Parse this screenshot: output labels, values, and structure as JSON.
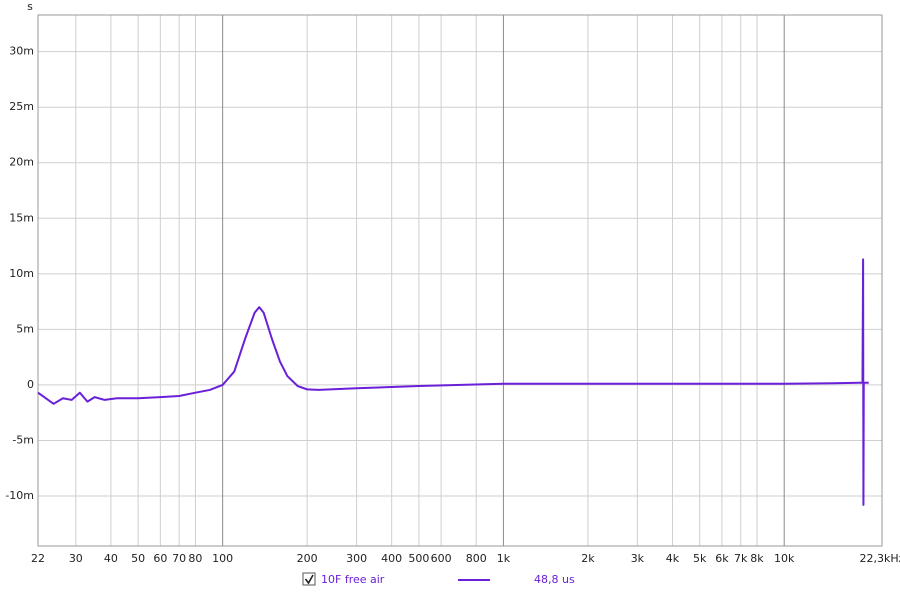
{
  "chart_data": {
    "type": "line",
    "ylabel": "s",
    "xscale": "log",
    "grid": true,
    "xlim": [
      22,
      22300
    ],
    "ylim": [
      -0.0145,
      0.0333
    ],
    "xticks": [
      22,
      30,
      40,
      50,
      60,
      70,
      80,
      100,
      200,
      300,
      400,
      500,
      600,
      800,
      {
        "value": 1000,
        "label": "1k"
      },
      {
        "value": 2000,
        "label": "2k"
      },
      {
        "value": 3000,
        "label": "3k"
      },
      {
        "value": 4000,
        "label": "4k"
      },
      {
        "value": 5000,
        "label": "5k"
      },
      {
        "value": 6000,
        "label": "6k"
      },
      {
        "value": 7000,
        "label": "7k"
      },
      {
        "value": 8000,
        "label": "8k"
      },
      {
        "value": 10000,
        "label": "10k"
      },
      {
        "value": 22300,
        "label": "22,3kHz"
      }
    ],
    "yticks": [
      {
        "value": -0.01,
        "label": "-10m"
      },
      {
        "value": -0.005,
        "label": "-5m"
      },
      0,
      {
        "value": 0.005,
        "label": "5m"
      },
      {
        "value": 0.01,
        "label": "10m"
      },
      {
        "value": 0.015,
        "label": "15m"
      },
      {
        "value": 0.02,
        "label": "20m"
      },
      {
        "value": 0.025,
        "label": "25m"
      },
      {
        "value": 0.03,
        "label": "30m"
      }
    ],
    "x": [
      22,
      25,
      27,
      29,
      31,
      33,
      35,
      38,
      42,
      50,
      60,
      70,
      80,
      90,
      100,
      110,
      120,
      130,
      135,
      140,
      150,
      160,
      170,
      185,
      200,
      220,
      300,
      500,
      1000,
      2000,
      5000,
      10000,
      15000,
      18500,
      19000,
      19100,
      19150,
      19200,
      20000
    ],
    "series": [
      {
        "name": "10F free air",
        "legend_value": "48,8 us",
        "color": "#6a1fd8",
        "values": [
          -0.0007,
          -0.0017,
          -0.0012,
          -0.00135,
          -0.0007,
          -0.0015,
          -0.0011,
          -0.00135,
          -0.0012,
          -0.0012,
          -0.0011,
          -0.001,
          -0.0007,
          -0.00045,
          0,
          0.0012,
          0.0041,
          0.0065,
          0.007,
          0.0065,
          0.0041,
          0.0021,
          0.0008,
          -0.0001,
          -0.0004,
          -0.00045,
          -0.0003,
          -0.0001,
          0.0001,
          0.0001,
          0.0001,
          0.0001,
          0.00015,
          0.0002,
          0.0002,
          0.0113,
          -0.0108,
          0.0002,
          0.0002
        ]
      }
    ]
  }
}
